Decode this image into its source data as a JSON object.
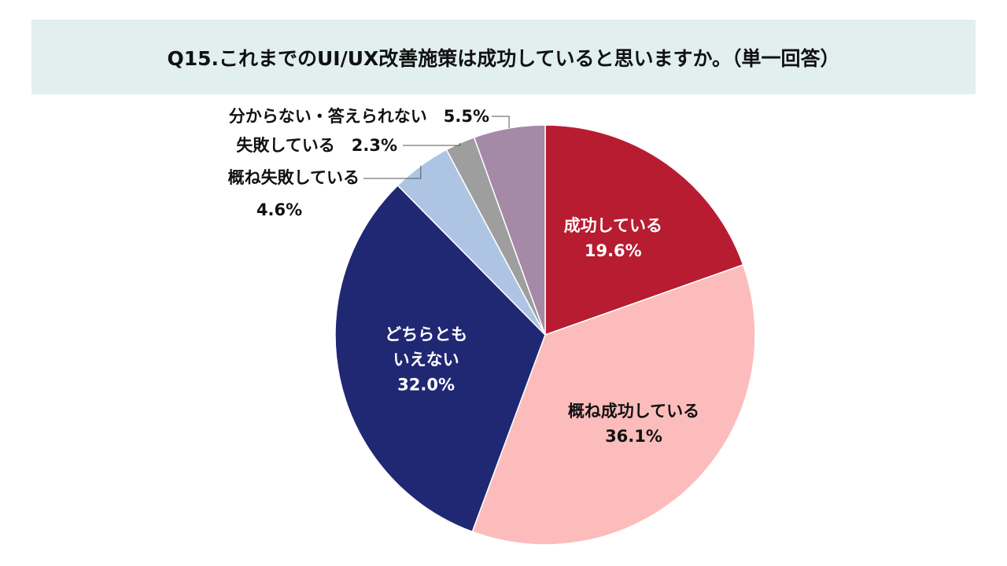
{
  "chart_data": {
    "type": "pie",
    "title": "Q15.これまでのUI/UX改善施策は成功していると思いますか。（単一回答）",
    "slices": [
      {
        "name": "成功している",
        "value": 19.6,
        "value_label": "19.6%",
        "color": "#b71c30",
        "label_color": "#ffffff"
      },
      {
        "name": "概ね成功している",
        "value": 36.1,
        "value_label": "36.1%",
        "color": "#fdbcbc",
        "label_color": "#111111"
      },
      {
        "name": "どちらとも\nいえない",
        "value": 32.0,
        "value_label": "32.0%",
        "color": "#202873",
        "label_color": "#ffffff"
      },
      {
        "name": "概ね失敗している",
        "value": 4.6,
        "value_label": "4.6%",
        "color": "#adc5e3",
        "label_color": "#111111"
      },
      {
        "name": "失敗している",
        "value": 2.3,
        "value_label": "2.3%",
        "color": "#9e9e9e",
        "label_color": "#111111"
      },
      {
        "name": "分からない・答えられない",
        "value": 5.5,
        "value_label": "5.5%",
        "color": "#a48aa6",
        "label_color": "#111111"
      }
    ],
    "start_angle": "12 o'clock",
    "direction": "clockwise"
  },
  "colors": {
    "title_band": "#e1efef",
    "leader_line": "#555555"
  }
}
